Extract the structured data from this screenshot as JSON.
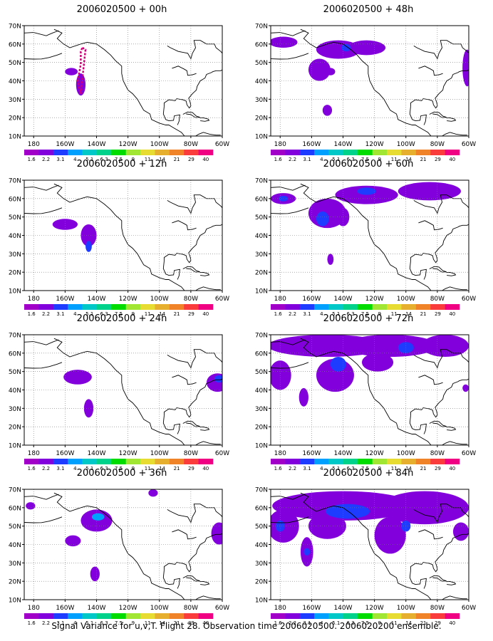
{
  "footer": "Signal Variance for u,v,T. Flight 28. Observation time 2006020500. 2006020200 ensemble.",
  "map": {
    "lat_ticks": [
      "70N",
      "60N",
      "50N",
      "40N",
      "30N",
      "20N",
      "10N"
    ],
    "lon_ticks": [
      "180",
      "160W",
      "140W",
      "120W",
      "100W",
      "80W",
      "60W"
    ],
    "extent": {
      "lon_min": -186,
      "lon_max": -60,
      "lat_min": 10,
      "lat_max": 70
    },
    "grid": true
  },
  "colorbar": {
    "labels": [
      "1.6",
      "2.2",
      "3.1",
      "4",
      "5.1",
      "6.3",
      "7.5",
      "9",
      "11",
      "14",
      "21",
      "29",
      "40"
    ],
    "colors": [
      "#a000c8",
      "#8200dc",
      "#1e3cff",
      "#00a0ff",
      "#00c8c8",
      "#00d28c",
      "#00dc00",
      "#a0e632",
      "#e6dc32",
      "#e6af2d",
      "#f08228",
      "#fa3c3c",
      "#f00082"
    ]
  },
  "panels": [
    {
      "title": "2006020500 + 00h",
      "flight_track": [
        [
          -149,
          58
        ],
        [
          -147,
          57
        ],
        [
          -148,
          49
        ],
        [
          -149,
          41
        ],
        [
          -150,
          33
        ],
        [
          -152,
          40
        ],
        [
          -150,
          49
        ],
        [
          -150,
          56
        ]
      ],
      "blobs": [
        {
          "lon": -150,
          "lat": 38,
          "rlon": 3,
          "rlat": 6,
          "level": 1
        },
        {
          "lon": -156,
          "lat": 45,
          "rlon": 4,
          "rlat": 2,
          "level": 1
        }
      ]
    },
    {
      "title": "2006020500 + 12h",
      "blobs": [
        {
          "lon": -160,
          "lat": 46,
          "rlon": 8,
          "rlat": 3,
          "level": 1
        },
        {
          "lon": -145,
          "lat": 40,
          "rlon": 5,
          "rlat": 6,
          "level": 1
        },
        {
          "lon": -145,
          "lat": 34,
          "rlon": 2,
          "rlat": 3,
          "level": 2
        }
      ]
    },
    {
      "title": "2006020500 + 24h",
      "blobs": [
        {
          "lon": -152,
          "lat": 47,
          "rlon": 9,
          "rlat": 4,
          "level": 1
        },
        {
          "lon": -145,
          "lat": 30,
          "rlon": 3,
          "rlat": 5,
          "level": 1
        },
        {
          "lon": -63,
          "lat": 44,
          "rlon": 7,
          "rlat": 5,
          "level": 1
        },
        {
          "lon": -62,
          "lat": 46,
          "rlon": 3,
          "rlat": 2,
          "level": 2
        }
      ]
    },
    {
      "title": "2006020500 + 36h",
      "blobs": [
        {
          "lon": -182,
          "lat": 61,
          "rlon": 3,
          "rlat": 2,
          "level": 1
        },
        {
          "lon": -140,
          "lat": 53,
          "rlon": 10,
          "rlat": 6,
          "level": 1
        },
        {
          "lon": -139,
          "lat": 55,
          "rlon": 4,
          "rlat": 2,
          "level": 3
        },
        {
          "lon": -155,
          "lat": 42,
          "rlon": 5,
          "rlat": 3,
          "level": 1
        },
        {
          "lon": -141,
          "lat": 24,
          "rlon": 3,
          "rlat": 4,
          "level": 1
        },
        {
          "lon": -62,
          "lat": 46,
          "rlon": 5,
          "rlat": 6,
          "level": 1
        },
        {
          "lon": -104,
          "lat": 68,
          "rlon": 3,
          "rlat": 2,
          "level": 1
        }
      ]
    },
    {
      "title": "2006020500 + 48h",
      "blobs": [
        {
          "lon": -178,
          "lat": 61,
          "rlon": 9,
          "rlat": 3,
          "level": 1
        },
        {
          "lon": -143,
          "lat": 57,
          "rlon": 14,
          "rlat": 5,
          "level": 1
        },
        {
          "lon": -155,
          "lat": 46,
          "rlon": 7,
          "rlat": 6,
          "level": 1
        },
        {
          "lon": -125,
          "lat": 58,
          "rlon": 12,
          "rlat": 4,
          "level": 1
        },
        {
          "lon": -138,
          "lat": 58,
          "rlon": 3,
          "rlat": 2,
          "level": 2
        },
        {
          "lon": -148,
          "lat": 45,
          "rlon": 3,
          "rlat": 2,
          "level": 1
        },
        {
          "lon": -150,
          "lat": 24,
          "rlon": 3,
          "rlat": 3,
          "level": 1
        },
        {
          "lon": -61,
          "lat": 47,
          "rlon": 3,
          "rlat": 10,
          "level": 1
        }
      ]
    },
    {
      "title": "2006020500 + 60h",
      "blobs": [
        {
          "lon": -178,
          "lat": 60,
          "rlon": 8,
          "rlat": 3,
          "level": 1
        },
        {
          "lon": -178,
          "lat": 60,
          "rlon": 3,
          "rlat": 1.5,
          "level": 2
        },
        {
          "lon": -150,
          "lat": 52,
          "rlon": 12,
          "rlat": 8,
          "level": 1
        },
        {
          "lon": -153,
          "lat": 49,
          "rlon": 4,
          "rlat": 4,
          "level": 2
        },
        {
          "lon": -125,
          "lat": 62,
          "rlon": 20,
          "rlat": 5,
          "level": 1
        },
        {
          "lon": -125,
          "lat": 64,
          "rlon": 6,
          "rlat": 2,
          "level": 2
        },
        {
          "lon": -85,
          "lat": 64,
          "rlon": 20,
          "rlat": 5,
          "level": 1
        },
        {
          "lon": -140,
          "lat": 50,
          "rlon": 4,
          "rlat": 5,
          "level": 1
        },
        {
          "lon": -148,
          "lat": 27,
          "rlon": 2,
          "rlat": 3,
          "level": 1
        }
      ]
    },
    {
      "title": "2006020500 + 72h",
      "blobs": [
        {
          "lon": -150,
          "lat": 64,
          "rlon": 38,
          "rlat": 6,
          "level": 1
        },
        {
          "lon": -110,
          "lat": 64,
          "rlon": 30,
          "rlat": 6,
          "level": 1
        },
        {
          "lon": -75,
          "lat": 64,
          "rlon": 15,
          "rlat": 6,
          "level": 1
        },
        {
          "lon": -180,
          "lat": 48,
          "rlon": 7,
          "rlat": 8,
          "level": 1
        },
        {
          "lon": -145,
          "lat": 48,
          "rlon": 12,
          "rlat": 9,
          "level": 1
        },
        {
          "lon": -143,
          "lat": 54,
          "rlon": 5,
          "rlat": 4,
          "level": 2
        },
        {
          "lon": -118,
          "lat": 55,
          "rlon": 10,
          "rlat": 5,
          "level": 1
        },
        {
          "lon": -100,
          "lat": 63,
          "rlon": 5,
          "rlat": 3,
          "level": 2
        },
        {
          "lon": -165,
          "lat": 36,
          "rlon": 3,
          "rlat": 5,
          "level": 1
        },
        {
          "lon": -62,
          "lat": 41,
          "rlon": 2,
          "rlat": 2,
          "level": 1
        }
      ]
    },
    {
      "title": "2006020500 + 84h",
      "blobs": [
        {
          "lon": -140,
          "lat": 61,
          "rlon": 45,
          "rlat": 8,
          "level": 1
        },
        {
          "lon": -88,
          "lat": 60,
          "rlon": 28,
          "rlat": 9,
          "level": 1
        },
        {
          "lon": -178,
          "lat": 50,
          "rlon": 10,
          "rlat": 9,
          "level": 1
        },
        {
          "lon": -150,
          "lat": 50,
          "rlon": 12,
          "rlat": 7,
          "level": 1
        },
        {
          "lon": -163,
          "lat": 36,
          "rlon": 4,
          "rlat": 8,
          "level": 1
        },
        {
          "lon": -110,
          "lat": 45,
          "rlon": 10,
          "rlat": 10,
          "level": 1
        },
        {
          "lon": -100,
          "lat": 50,
          "rlon": 3,
          "rlat": 3,
          "level": 2
        },
        {
          "lon": -137,
          "lat": 58,
          "rlon": 14,
          "rlat": 4,
          "level": 2
        },
        {
          "lon": -180,
          "lat": 50,
          "rlon": 3,
          "rlat": 3,
          "level": 2
        },
        {
          "lon": -163,
          "lat": 36,
          "rlon": 2,
          "rlat": 2,
          "level": 2
        },
        {
          "lon": -65,
          "lat": 47,
          "rlon": 5,
          "rlat": 5,
          "level": 1
        }
      ]
    }
  ]
}
